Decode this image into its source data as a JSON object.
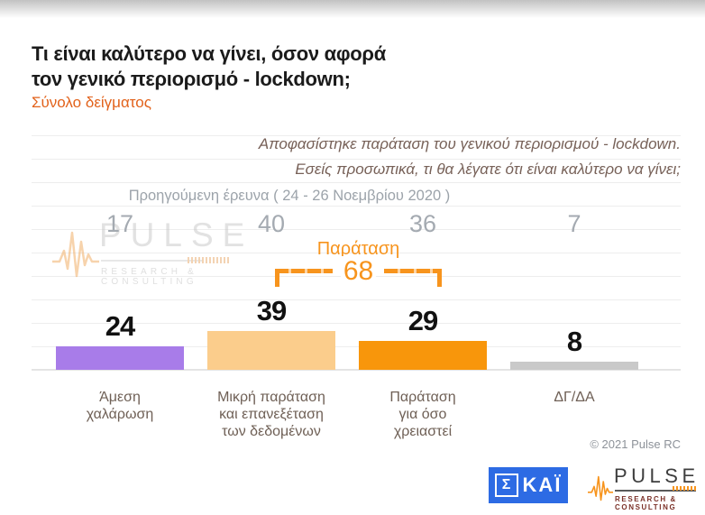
{
  "header": {
    "title_line1": "Τι είναι καλύτερο να γίνει, όσον αφορά",
    "title_line2": "τον γενικό περιορισμό - lockdown;",
    "subtitle": "Σύνολο δείγματος"
  },
  "chart_data": {
    "type": "bar",
    "title": "Τι είναι καλύτερο να γίνει, όσον αφορά τον γενικό περιορισμό - lockdown;",
    "subtitle": "Σύνολο δείγματος",
    "annotation": [
      "Αποφασίστηκε παράταση του γενικού περιορισμού - lockdown.",
      "Εσείς προσωπικά, τι θα λέγατε ότι είναι καλύτερο να γίνει;"
    ],
    "categories": [
      "Άμεση\nχαλάρωση",
      "Μικρή παράταση\nκαι επανεξέταση\nτων δεδομένων",
      "Παράταση\nγια όσο\nχρειαστεί",
      "ΔΓ/ΔΑ"
    ],
    "values": [
      24,
      39,
      29,
      8
    ],
    "previous": {
      "label": "Προηγούμενη έρευνα ( 24 - 26  Νοεμβρίου  2020 )",
      "values": [
        17,
        40,
        36,
        7
      ]
    },
    "bracket": {
      "label": "Παράταση",
      "value": 68,
      "spans_categories": [
        1,
        2
      ]
    },
    "bar_colors": [
      "#A87CE9",
      "#FBCD8C",
      "#F8960B",
      "#C9C9C9"
    ],
    "ylim": [
      0,
      100
    ],
    "grid": true,
    "legend": false
  },
  "footer": {
    "copyright": "© 2021 Pulse RC"
  },
  "logos": {
    "skai": {
      "sigma": "Σ",
      "rest": "ΚΑΪ",
      "color": "#2D6BE4"
    },
    "pulse": {
      "name": "PULSE",
      "tagline": "RESEARCH & CONSULTING"
    }
  },
  "colors": {
    "accent_orange": "#E2621B",
    "bracket_orange": "#F7941D",
    "prev_gray": "#A4AAB1",
    "label_brown": "#6F6056",
    "skai_blue": "#2D6BE4"
  }
}
